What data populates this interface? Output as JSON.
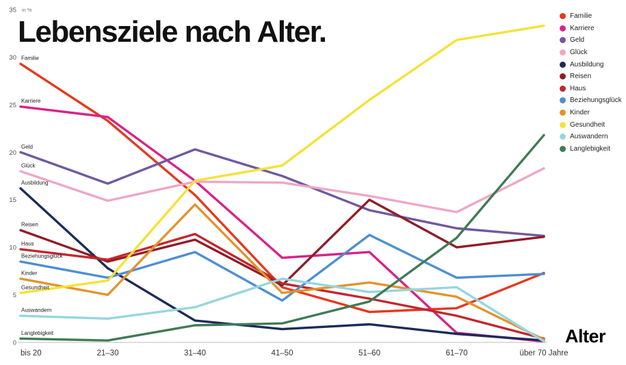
{
  "chart_data": {
    "type": "line",
    "title": "Lebensziele nach Alter.",
    "unit_label": "in %",
    "xlabel": "Alter",
    "categories": [
      "bis 20",
      "21–30",
      "31–40",
      "41–50",
      "51–60",
      "61–70",
      "über 70 Jahre"
    ],
    "ylim": [
      0,
      35
    ],
    "yticks": [
      0,
      5,
      10,
      15,
      20,
      25,
      30,
      35
    ],
    "grid": "none",
    "legend_position": "top-right",
    "series": [
      {
        "name": "Familie",
        "color": "#e6391f",
        "values": [
          29.3,
          23.3,
          15.5,
          5.8,
          3.2,
          3.6,
          7.3
        ]
      },
      {
        "name": "Karriere",
        "color": "#d92288",
        "values": [
          24.8,
          23.7,
          17.0,
          8.9,
          9.5,
          1.0,
          0.1
        ]
      },
      {
        "name": "Geld",
        "color": "#6f5a9e",
        "values": [
          20.0,
          16.7,
          20.3,
          17.5,
          13.9,
          12.0,
          11.2
        ]
      },
      {
        "name": "Glück",
        "color": "#efa6c6",
        "values": [
          18.0,
          14.9,
          16.9,
          16.8,
          15.4,
          13.7,
          18.3
        ]
      },
      {
        "name": "Ausbildung",
        "color": "#1d2b5a",
        "values": [
          16.2,
          7.8,
          2.3,
          1.4,
          1.9,
          0.9,
          0.2
        ]
      },
      {
        "name": "Reisen",
        "color": "#8f1d26",
        "values": [
          11.8,
          8.5,
          10.8,
          6.0,
          15.0,
          10.0,
          11.1
        ]
      },
      {
        "name": "Haus",
        "color": "#c2272d",
        "values": [
          9.8,
          8.7,
          11.4,
          6.2,
          4.6,
          2.8,
          0.4
        ]
      },
      {
        "name": "Beziehungsglück",
        "color": "#4d8fd1",
        "values": [
          8.5,
          6.8,
          9.5,
          4.4,
          11.3,
          6.8,
          7.2
        ]
      },
      {
        "name": "Kinder",
        "color": "#e2942c",
        "values": [
          6.7,
          5.0,
          14.5,
          5.2,
          6.3,
          4.8,
          0.3
        ]
      },
      {
        "name": "Gesundheit",
        "color": "#f6e137",
        "values": [
          5.2,
          6.5,
          17.0,
          18.6,
          25.5,
          31.8,
          33.3
        ]
      },
      {
        "name": "Auswandern",
        "color": "#96d6de",
        "values": [
          2.8,
          2.5,
          3.7,
          6.7,
          5.3,
          5.8,
          0.1
        ]
      },
      {
        "name": "Langlebigkeit",
        "color": "#3f7c55",
        "values": [
          0.4,
          0.2,
          1.8,
          2.0,
          4.3,
          11.0,
          21.8
        ]
      }
    ]
  }
}
